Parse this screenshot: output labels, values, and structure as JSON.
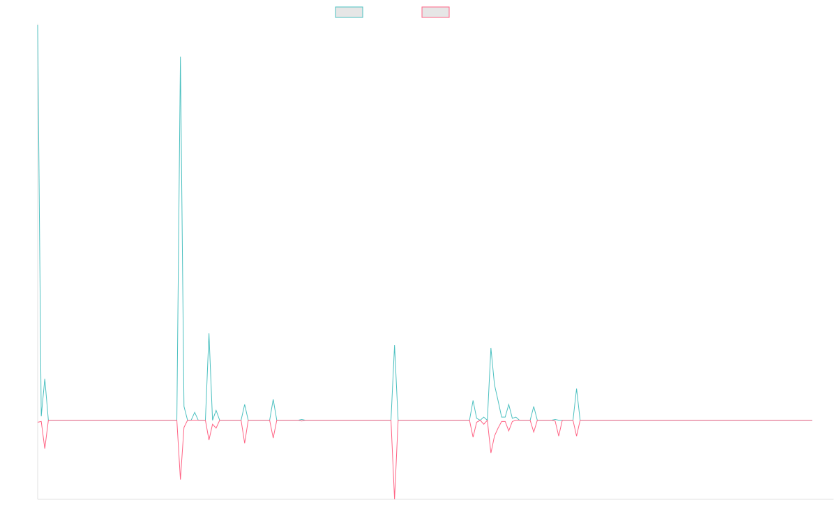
{
  "chart_data": {
    "type": "line",
    "title": "",
    "xlabel": "",
    "ylabel": "",
    "grid": false,
    "legend_position": "top-center",
    "xlim": [
      0,
      223
    ],
    "ylim": [
      -0.2,
      1.0
    ],
    "series": [
      {
        "name": "",
        "color": "#4bc0c0",
        "values": [
          1.0,
          0.01,
          0.105,
          0,
          0,
          0,
          0,
          0,
          0,
          0,
          0,
          0,
          0,
          0,
          0,
          0,
          0,
          0,
          0,
          0,
          0,
          0,
          0,
          0,
          0,
          0,
          0,
          0,
          0,
          0,
          0,
          0,
          0,
          0,
          0,
          0,
          0,
          0,
          0,
          0,
          0.92,
          0.035,
          0,
          0,
          0.02,
          0,
          0,
          0,
          0.22,
          0,
          0.025,
          0,
          0,
          0,
          0,
          0,
          0,
          0,
          0.04,
          0,
          0,
          0,
          0,
          0,
          0,
          0,
          0.053,
          0,
          0,
          0,
          0,
          0,
          0,
          0,
          0.002,
          0,
          0,
          0,
          0,
          0,
          0,
          0,
          0,
          0,
          0,
          0,
          0,
          0,
          0,
          0,
          0,
          0,
          0,
          0,
          0,
          0,
          0,
          0,
          0,
          0,
          0.19,
          0,
          0,
          0,
          0,
          0,
          0,
          0,
          0,
          0,
          0,
          0,
          0,
          0,
          0,
          0,
          0,
          0,
          0,
          0,
          0,
          0,
          0.05,
          0.005,
          0,
          0.008,
          0,
          0.183,
          0.09,
          0.05,
          0.008,
          0.008,
          0.04,
          0.005,
          0.008,
          0,
          0,
          0,
          0,
          0.035,
          0,
          0,
          0,
          0,
          0,
          0.002,
          0,
          0,
          0,
          0,
          0,
          0.08,
          0,
          0,
          0,
          0,
          0,
          0,
          0,
          0,
          0,
          0,
          0,
          0,
          0,
          0,
          0,
          0,
          0,
          0,
          0,
          0,
          0,
          0,
          0,
          0,
          0,
          0,
          0,
          0,
          0,
          0,
          0,
          0,
          0,
          0,
          0,
          0,
          0,
          0,
          0,
          0,
          0,
          0,
          0,
          0,
          0,
          0,
          0,
          0,
          0,
          0,
          0,
          0,
          0,
          0,
          0,
          0,
          0,
          0,
          0,
          0,
          0,
          0,
          0,
          0,
          0,
          0
        ]
      },
      {
        "name": "",
        "color": "#ff6384",
        "values": [
          -0.005,
          -0.003,
          -0.072,
          0,
          0,
          0,
          0,
          0,
          0,
          0,
          0,
          0,
          0,
          0,
          0,
          0,
          0,
          0,
          0,
          0,
          0,
          0,
          0,
          0,
          0,
          0,
          0,
          0,
          0,
          0,
          0,
          0,
          0,
          0,
          0,
          0,
          0,
          0,
          0,
          0,
          -0.15,
          -0.018,
          0,
          0,
          0,
          0,
          0,
          0,
          -0.05,
          -0.01,
          -0.02,
          0,
          0,
          0,
          0,
          0,
          0,
          0,
          -0.058,
          0,
          0,
          0,
          0,
          0,
          0,
          0,
          -0.045,
          0,
          0,
          0,
          0,
          0,
          0,
          0,
          -0.002,
          0,
          0,
          0,
          0,
          0,
          0,
          0,
          0,
          0,
          0,
          0,
          0,
          0,
          0,
          0,
          0,
          0,
          0,
          0,
          0,
          0,
          0,
          0,
          0,
          0,
          -0.2,
          0,
          0,
          0,
          0,
          0,
          0,
          0,
          0,
          0,
          0,
          0,
          0,
          0,
          0,
          0,
          0,
          0,
          0,
          0,
          0,
          0,
          -0.043,
          -0.005,
          0,
          -0.01,
          0,
          -0.083,
          -0.04,
          -0.02,
          -0.003,
          -0.003,
          -0.027,
          -0.003,
          0,
          0,
          0,
          0,
          0,
          -0.03,
          0,
          0,
          0,
          0,
          0,
          -0.002,
          -0.04,
          0,
          0,
          0,
          0,
          -0.04,
          0,
          0,
          0,
          0,
          0,
          0,
          0,
          0,
          0,
          0,
          0,
          0,
          0,
          0,
          0,
          0,
          0,
          0,
          0,
          0,
          0,
          0,
          0,
          0,
          0,
          0,
          0,
          0,
          0,
          0,
          0,
          0,
          0,
          0,
          0,
          0,
          0,
          0,
          0,
          0,
          0,
          0,
          0,
          0,
          0,
          0,
          0,
          0,
          0,
          0,
          0,
          0,
          0,
          0,
          0,
          0,
          0,
          0,
          0,
          0,
          0,
          0,
          0,
          0,
          0,
          0
        ]
      }
    ]
  }
}
